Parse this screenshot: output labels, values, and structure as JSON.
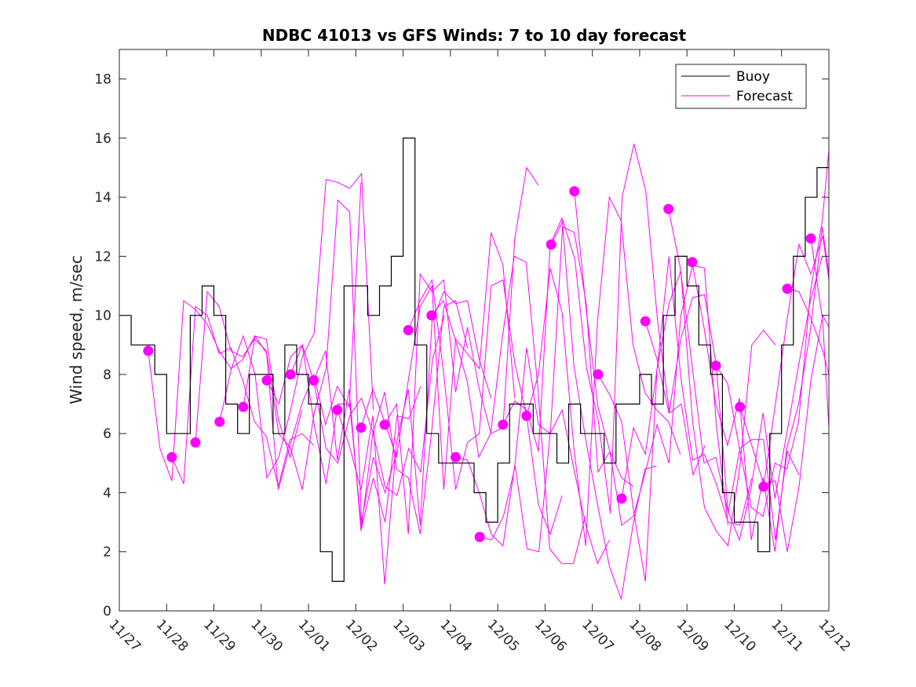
{
  "chart_data": {
    "type": "line",
    "title": "NDBC 41013 vs GFS Winds: 7 to 10 day forecast",
    "xlabel": "",
    "ylabel": "Wind speed, m/sec",
    "xlim": [
      0,
      15
    ],
    "ylim": [
      0,
      19
    ],
    "x_unit": "days since 11/27",
    "x_tick_values": [
      0,
      1,
      2,
      3,
      4,
      5,
      6,
      7,
      8,
      9,
      10,
      11,
      12,
      13,
      14,
      15
    ],
    "x_tick_labels": [
      "11/27",
      "11/28",
      "11/29",
      "11/30",
      "12/01",
      "12/02",
      "12/03",
      "12/04",
      "12/05",
      "12/06",
      "12/07",
      "12/08",
      "12/09",
      "12/10",
      "12/11",
      "12/12"
    ],
    "y_tick_values": [
      0,
      2,
      4,
      6,
      8,
      10,
      12,
      14,
      16,
      18
    ],
    "y_tick_labels": [
      "0",
      "2",
      "4",
      "6",
      "8",
      "10",
      "12",
      "14",
      "16",
      "18"
    ],
    "grid": false,
    "legend": {
      "position": "top-right",
      "entries": [
        {
          "label": "Buoy",
          "color": "#000000"
        },
        {
          "label": "Forecast",
          "color": "#ff00ff"
        }
      ]
    },
    "series": [
      {
        "name": "Buoy",
        "color": "#000000",
        "style": "step",
        "x_step": 0.25,
        "values": [
          10,
          9,
          9,
          8,
          6,
          6,
          10,
          11,
          10,
          7,
          6,
          8,
          8,
          6,
          9,
          8,
          7,
          2,
          1,
          11,
          11,
          10,
          11,
          12,
          16,
          9,
          6,
          5,
          5,
          5,
          4,
          3,
          5,
          7,
          7,
          6,
          6,
          5,
          7,
          6,
          6,
          5,
          7,
          7,
          8,
          7,
          10,
          12,
          11,
          9,
          8,
          4,
          3,
          3,
          2,
          6,
          9,
          12,
          14,
          15,
          15
        ]
      }
    ],
    "forecast_markers": {
      "name": "Forecast start",
      "color": "#ff00ff",
      "x": [
        0.61,
        1.11,
        1.61,
        2.12,
        2.62,
        3.12,
        3.62,
        4.11,
        4.61,
        5.11,
        5.61,
        6.11,
        6.6,
        7.11,
        7.62,
        8.11,
        8.61,
        9.13,
        9.62,
        10.12,
        10.62,
        11.12,
        11.61,
        12.11,
        12.61,
        13.12,
        13.62,
        14.12,
        14.62
      ],
      "y": [
        8.8,
        5.2,
        5.7,
        6.4,
        6.9,
        7.8,
        8.0,
        7.8,
        6.8,
        6.2,
        6.3,
        9.5,
        10.0,
        5.2,
        2.5,
        6.3,
        6.6,
        12.4,
        14.2,
        8.0,
        3.8,
        9.8,
        13.6,
        11.8,
        8.3,
        6.9,
        4.2,
        10.9,
        12.6
      ]
    },
    "forecast_tracks": {
      "x_step": 0.25,
      "tracks": [
        [
          8.8,
          5.5,
          4.4,
          10.5,
          10.2,
          9.7,
          8.8,
          8.2,
          8.5,
          9.3,
          9.2,
          6.5,
          5.2,
          6.8
        ],
        [
          5.2,
          4.3,
          10.3,
          10.0,
          8.7,
          8.9,
          7.8,
          6.4,
          5.9,
          4.2,
          5.8,
          6.0,
          5.6
        ],
        [
          5.7,
          10.8,
          10.3,
          8.8,
          8.6,
          9.2,
          8.8,
          4.1,
          5.6,
          7.0,
          8.0,
          6.3,
          7.6,
          6.9,
          14.5
        ],
        [
          6.4,
          8.2,
          9.3,
          8.0,
          4.5,
          5.2,
          6.8,
          8.6,
          9.4,
          14.6,
          14.5,
          14.3,
          14.8,
          6.8
        ],
        [
          6.9,
          9.3,
          8.7,
          6.0,
          5.5,
          4.1,
          6.7,
          8.2,
          13.9,
          13.5,
          3.0,
          5.2,
          4.0,
          5.4
        ],
        [
          7.8,
          7.0,
          8.6,
          9.0,
          6.3,
          4.3,
          7.0,
          7.0,
          2.8,
          4.5,
          3.0,
          6.6,
          6.5,
          7.6
        ],
        [
          8.0,
          9.0,
          7.7,
          5.5,
          5.0,
          6.6,
          7.2,
          6.0,
          4.2,
          3.9,
          5.5,
          4.7,
          8.5,
          10.0
        ],
        [
          7.8,
          8.8,
          5.1,
          7.5,
          2.7,
          6.0,
          7.4,
          4.8,
          4.5,
          2.6,
          6.2,
          10.3,
          10.5,
          8.9
        ],
        [
          6.8,
          5.6,
          4.1,
          6.6,
          0.9,
          5.7,
          7.5,
          2.9,
          9.8,
          10.8,
          10.4,
          10.5,
          8.5,
          7.2
        ],
        [
          6.2,
          7.5,
          6.4,
          5.2,
          7.8,
          10.3,
          11.0,
          4.1,
          9.2,
          8.7,
          8.2,
          12.8,
          11.7,
          7.2
        ],
        [
          6.3,
          7.0,
          2.6,
          11.4,
          10.8,
          11.2,
          7.4,
          9.6,
          7.5,
          6.0,
          6.2,
          12.6,
          15.0,
          14.4
        ],
        [
          9.5,
          10.5,
          11.2,
          8.0,
          4.1,
          5.7,
          6.0,
          11.0,
          11.2,
          8.4,
          6.6,
          3.6,
          2.6,
          3.9
        ],
        [
          10.0,
          10.5,
          9.2,
          7.8,
          5.2,
          6.0,
          9.3,
          12.0,
          11.8,
          7.5,
          2.1,
          1.6,
          1.6,
          3.2
        ],
        [
          5.2,
          5.1,
          4.0,
          2.6,
          2.2,
          4.9,
          8.9,
          6.3,
          6.0,
          6.8,
          4.8,
          2.9,
          1.6,
          2.4
        ],
        [
          2.5,
          2.4,
          3.2,
          4.9,
          2.1,
          2.0,
          6.2,
          13.0,
          12.8,
          10.4,
          4.7,
          5.4,
          4.5,
          4.2
        ],
        [
          6.3,
          7.1,
          6.8,
          5.4,
          12.4,
          13.3,
          8.3,
          5.8,
          3.6,
          1.5,
          0.4,
          2.9,
          4.8,
          4.9
        ],
        [
          6.6,
          8.0,
          11.6,
          10.1,
          5.5,
          2.2,
          9.8,
          14.0,
          13.2,
          9.0,
          7.4,
          6.8,
          6.4,
          5.3
        ],
        [
          12.4,
          13.2,
          11.9,
          8.2,
          6.4,
          3.3,
          14.0,
          15.8,
          14.2,
          9.8,
          6.7,
          7.0,
          4.6,
          5.6
        ],
        [
          14.2,
          10.2,
          6.9,
          5.4,
          2.9,
          3.2,
          4.7,
          6.3,
          5.0,
          10.0,
          11.7,
          11.6,
          6.3,
          2.9
        ],
        [
          8.0,
          7.3,
          6.4,
          3.4,
          1.0,
          8.2,
          12.0,
          7.9,
          5.1,
          5.3,
          4.3,
          3.0,
          2.9,
          4.5
        ],
        [
          3.8,
          6.2,
          5.3,
          8.2,
          10.4,
          11.5,
          6.4,
          3.5,
          2.7,
          2.2,
          4.9,
          9.0,
          9.5,
          9.0
        ],
        [
          9.8,
          8.5,
          6.7,
          9.2,
          10.6,
          10.7,
          8.3,
          3.3,
          5.5,
          5.8,
          5.8,
          2.4,
          5.4,
          4.6
        ],
        [
          13.6,
          11.6,
          8.3,
          5.0,
          5.2,
          3.4,
          2.4,
          4.2,
          6.7,
          3.8,
          6.0,
          8.3,
          10.5,
          12.0
        ],
        [
          11.8,
          9.6,
          7.0,
          5.6,
          7.2,
          2.4,
          4.5,
          2.0,
          5.5,
          7.0,
          9.5,
          13.0,
          11.4,
          8.1
        ],
        [
          8.3,
          7.7,
          5.5,
          3.5,
          3.2,
          5.0,
          4.8,
          6.4,
          10.8,
          13.2,
          15.6,
          15.3,
          14.1,
          11.6
        ],
        [
          6.9,
          5.6,
          4.3,
          4.4,
          2.0,
          4.2,
          7.8,
          10.0,
          9.6,
          8.3,
          10.4,
          11.0,
          9.2,
          4.0
        ],
        [
          4.2,
          7.0,
          9.9,
          12.4,
          11.4,
          12.7,
          11.2,
          9.5,
          9.0,
          2.6,
          2.5,
          3.8,
          5.5,
          7.5
        ],
        [
          10.9,
          10.8,
          9.9,
          8.8,
          8.0,
          10.2,
          11.4,
          9.0
        ],
        [
          12.6,
          9.8,
          6.2,
          4.6,
          7.0,
          9.6,
          11.4
        ]
      ]
    }
  }
}
